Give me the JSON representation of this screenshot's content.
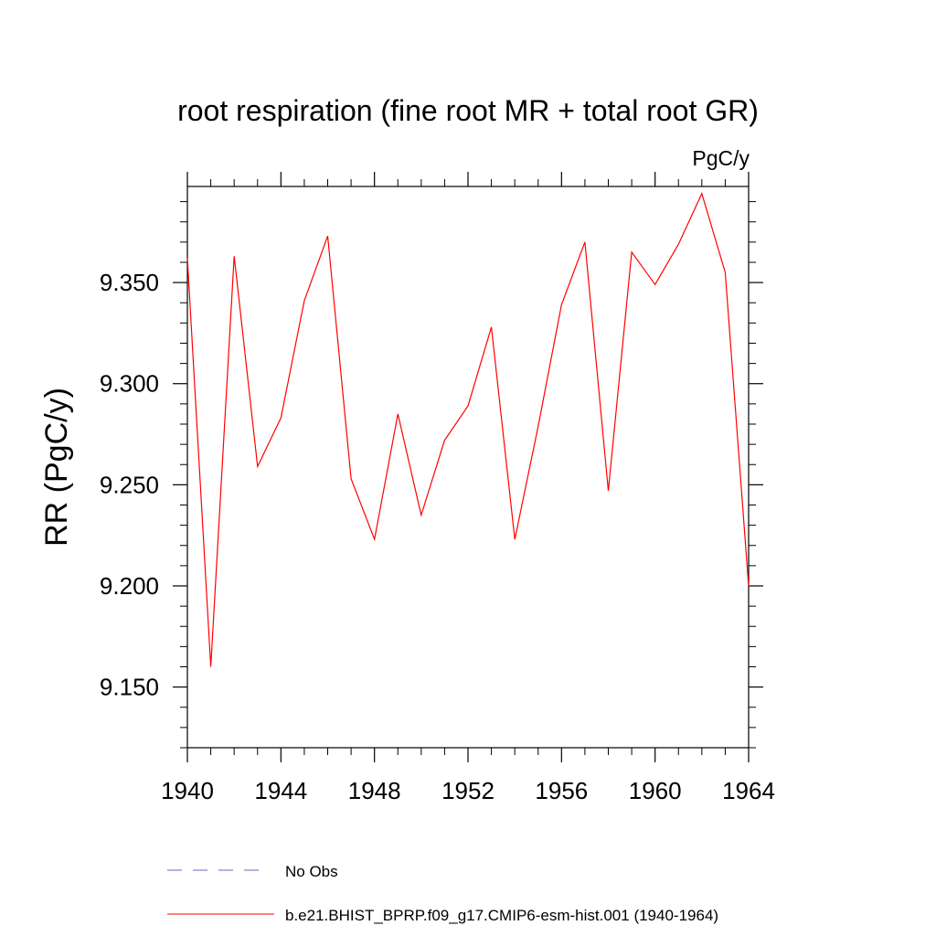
{
  "chart_data": {
    "type": "line",
    "title": "root respiration (fine root MR + total root GR)",
    "units_label": "PgC/y",
    "ylabel": "RR  (PgC/y)",
    "xlabel": "",
    "xlim": [
      1940,
      1964
    ],
    "ylim": [
      9.12,
      9.3975
    ],
    "x_ticks": [
      "1940",
      "1944",
      "1948",
      "1952",
      "1956",
      "1960",
      "1964"
    ],
    "y_ticks": [
      "9.150",
      "9.200",
      "9.250",
      "9.300",
      "9.350"
    ],
    "grid": false,
    "legend_position": "bottom",
    "legend": [
      {
        "label": "No Obs",
        "color": "#6666cc",
        "style": "dashed"
      },
      {
        "label": "b.e21.BHIST_BPRP.f09_g17.CMIP6-esm-hist.001 (1940-1964)",
        "color": "#ff0000",
        "style": "solid"
      }
    ],
    "series": [
      {
        "name": "b.e21.BHIST_BPRP.f09_g17.CMIP6-esm-hist.001 (1940-1964)",
        "color": "#ff0000",
        "x": [
          1940,
          1941,
          1942,
          1943,
          1944,
          1945,
          1946,
          1947,
          1948,
          1949,
          1950,
          1951,
          1952,
          1953,
          1954,
          1955,
          1956,
          1957,
          1958,
          1959,
          1960,
          1961,
          1962,
          1963,
          1964
        ],
        "values": [
          9.362,
          9.16,
          9.363,
          9.259,
          9.283,
          9.341,
          9.373,
          9.253,
          9.223,
          9.285,
          9.235,
          9.272,
          9.289,
          9.328,
          9.223,
          9.279,
          9.339,
          9.37,
          9.247,
          9.365,
          9.349,
          9.369,
          9.394,
          9.355,
          9.2
        ]
      }
    ]
  }
}
